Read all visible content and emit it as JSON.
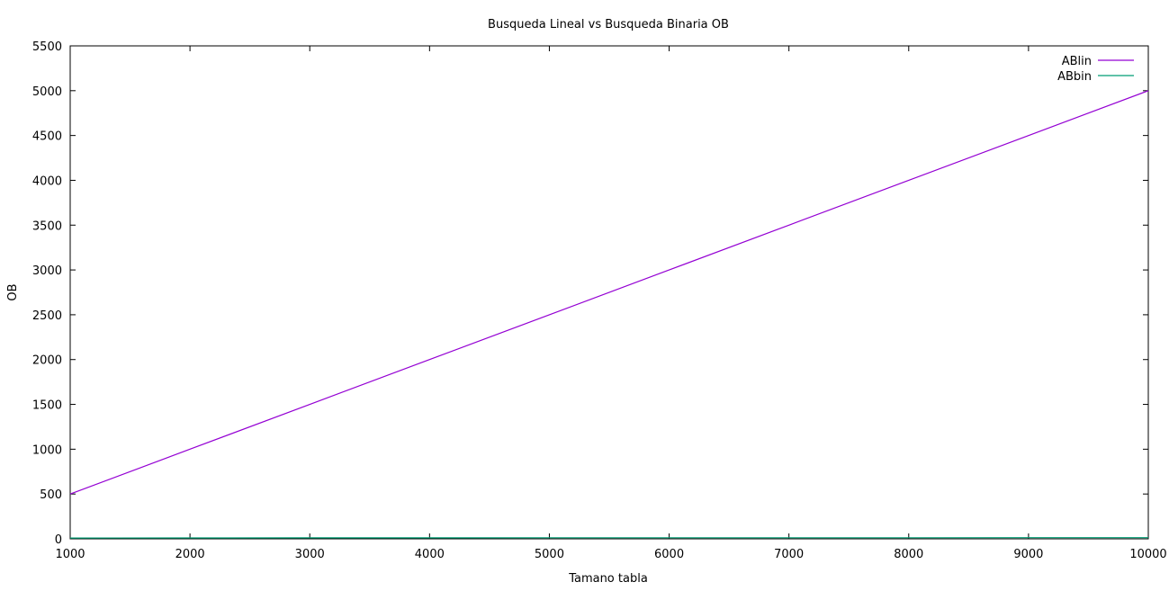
{
  "chart_data": {
    "type": "line",
    "title": "Busqueda Lineal vs Busqueda Binaria OB",
    "xlabel": "Tamano tabla",
    "ylabel": "OB",
    "xlim": [
      1000,
      10000
    ],
    "ylim": [
      0,
      5500
    ],
    "xticks": [
      1000,
      2000,
      3000,
      4000,
      5000,
      6000,
      7000,
      8000,
      9000,
      10000
    ],
    "yticks": [
      0,
      500,
      1000,
      1500,
      2000,
      2500,
      3000,
      3500,
      4000,
      4500,
      5000,
      5500
    ],
    "grid": false,
    "legend_position": "top-right",
    "series": [
      {
        "name": "ABlin",
        "color": "#9400d3",
        "x": [
          1000,
          2000,
          3000,
          4000,
          5000,
          6000,
          7000,
          8000,
          9000,
          10000
        ],
        "y": [
          500,
          1000,
          1500,
          2000,
          2500,
          3000,
          3500,
          4000,
          4500,
          5000
        ]
      },
      {
        "name": "ABbin",
        "color": "#009e73",
        "x": [
          1000,
          2000,
          3000,
          4000,
          5000,
          6000,
          7000,
          8000,
          9000,
          10000
        ],
        "y": [
          9,
          10,
          11,
          11,
          12,
          12,
          12,
          12,
          13,
          13
        ]
      }
    ]
  }
}
